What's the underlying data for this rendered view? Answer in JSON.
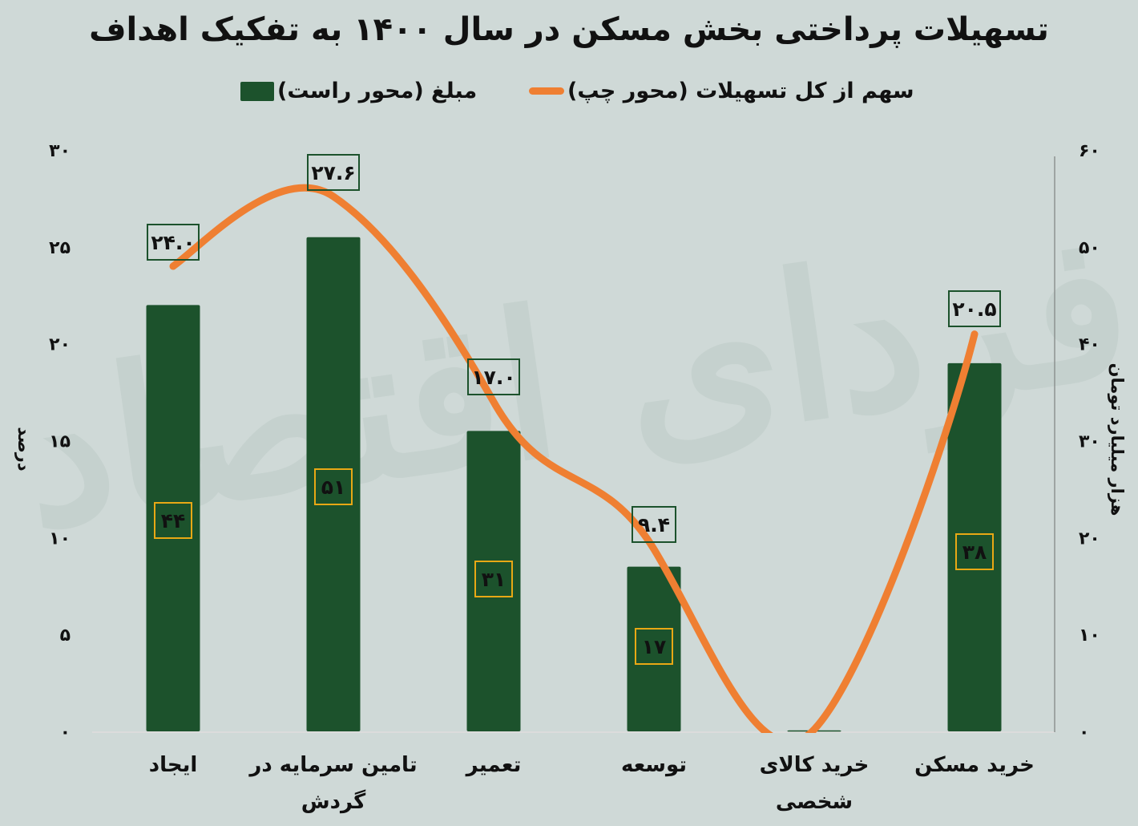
{
  "title": "تسهیلات پرداختی بخش مسکن در سال ۱۴۰۰ به تفکیک اهداف",
  "legend": {
    "line_label": "سهم از کل تسهیلات (محور چپ)",
    "bar_label": "مبلغ (محور راست)"
  },
  "colors": {
    "background": "#cfd9d7",
    "bar": "#1c522c",
    "line": "#ef7f32",
    "line_label_border": "#1c522c",
    "bar_label_border": "#e8a815",
    "watermark": "#c2cfcb",
    "axis_line": "#8d9391"
  },
  "watermark_text": "فردای اقتصاد",
  "chart_data": {
    "type": "bar+line",
    "title": "تسهیلات پرداختی بخش مسکن در سال ۱۴۰۰ به تفکیک اهداف",
    "categories": [
      "ایجاد",
      "تامین سرمایه در گردش",
      "تعمیر",
      "توسعه",
      "خرید کالای شخصی",
      "خرید مسکن"
    ],
    "category_lines": [
      [
        "ایجاد"
      ],
      [
        "تامین سرمایه در",
        "گردش"
      ],
      [
        "تعمیر"
      ],
      [
        "توسعه"
      ],
      [
        "خرید کالای",
        "شخصی"
      ],
      [
        "خرید مسکن"
      ]
    ],
    "series": [
      {
        "name": "مبلغ (محور راست)",
        "type": "bar",
        "axis": "right",
        "values": [
          44,
          51,
          31,
          17,
          0.1,
          38
        ],
        "labels": [
          "۴۴",
          "۵۱",
          "۳۱",
          "۱۷",
          "",
          "۳۸"
        ]
      },
      {
        "name": "سهم از کل تسهیلات (محور چپ)",
        "type": "line",
        "axis": "left",
        "values": [
          24.0,
          27.6,
          17.0,
          9.4,
          0.1,
          20.5
        ],
        "labels": [
          "۲۴.۰",
          "۲۷.۶",
          "۱۷.۰",
          "۹.۴",
          "",
          "۲۰.۵"
        ]
      }
    ],
    "left_axis": {
      "label": "درصد",
      "range": [
        0,
        30
      ],
      "ticks": [
        0,
        5,
        10,
        15,
        20,
        25,
        30
      ],
      "tick_labels": [
        "۰",
        "۵",
        "۱۰",
        "۱۵",
        "۲۰",
        "۲۵",
        "۳۰"
      ]
    },
    "right_axis": {
      "label": "هزار میلیارد تومان",
      "range": [
        0,
        60
      ],
      "ticks": [
        0,
        10,
        20,
        30,
        40,
        50,
        60
      ],
      "tick_labels": [
        "۰",
        "۱۰",
        "۲۰",
        "۳۰",
        "۴۰",
        "۵۰",
        "۶۰"
      ]
    },
    "grid": false,
    "legend_position": "top"
  }
}
